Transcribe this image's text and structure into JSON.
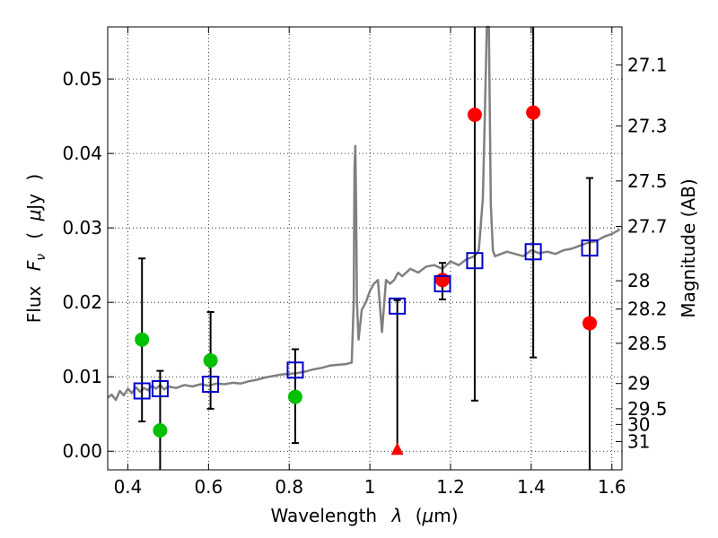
{
  "chart_data": {
    "type": "scatter",
    "title": "",
    "xlabel_parts": [
      "Wavelength",
      "λ",
      "(",
      "μ",
      "m)"
    ],
    "ylabel_parts": [
      "Flux",
      "F",
      "ν",
      "(",
      "μ",
      "Jy",
      ")"
    ],
    "ylabel_right": "Magnitude (AB)",
    "xlim": [
      0.35,
      1.625
    ],
    "ylim": [
      -0.0025,
      0.057
    ],
    "grid": true,
    "x_ticks": [
      {
        "value": 0.4,
        "label": "0.4"
      },
      {
        "value": 0.6,
        "label": "0.6"
      },
      {
        "value": 0.8,
        "label": "0.8"
      },
      {
        "value": 1.0,
        "label": "1"
      },
      {
        "value": 1.2,
        "label": "1.2"
      },
      {
        "value": 1.4,
        "label": "1.4"
      },
      {
        "value": 1.6,
        "label": "1.6"
      }
    ],
    "y_ticks": [
      {
        "value": 0.0,
        "label": "0.00"
      },
      {
        "value": 0.01,
        "label": "0.01"
      },
      {
        "value": 0.02,
        "label": "0.02"
      },
      {
        "value": 0.03,
        "label": "0.03"
      },
      {
        "value": 0.04,
        "label": "0.04"
      },
      {
        "value": 0.05,
        "label": "0.05"
      }
    ],
    "mag_ticks": [
      {
        "label": "27.1",
        "flux": 0.0519
      },
      {
        "label": "27.3",
        "flux": 0.0437
      },
      {
        "label": "27.5",
        "flux": 0.0363
      },
      {
        "label": "27.7",
        "flux": 0.0302
      },
      {
        "label": "28",
        "flux": 0.0229
      },
      {
        "label": "28.2",
        "flux": 0.0191
      },
      {
        "label": "28.5",
        "flux": 0.0145
      },
      {
        "label": "29",
        "flux": 0.0091
      },
      {
        "label": "29.5",
        "flux": 0.0057
      },
      {
        "label": "30",
        "flux": 0.0036
      },
      {
        "label": "31",
        "flux": 0.0013
      }
    ],
    "model_spectrum": {
      "color": "#808080",
      "x": [
        0.35,
        0.36,
        0.37,
        0.38,
        0.39,
        0.4,
        0.41,
        0.42,
        0.43,
        0.44,
        0.45,
        0.46,
        0.47,
        0.48,
        0.49,
        0.5,
        0.52,
        0.54,
        0.56,
        0.58,
        0.6,
        0.62,
        0.64,
        0.66,
        0.68,
        0.7,
        0.72,
        0.74,
        0.76,
        0.78,
        0.8,
        0.82,
        0.84,
        0.86,
        0.88,
        0.9,
        0.92,
        0.94,
        0.955,
        0.96,
        0.962,
        0.964,
        0.966,
        0.968,
        0.972,
        0.976,
        0.98,
        0.99,
        1.0,
        1.01,
        1.02,
        1.03,
        1.04,
        1.05,
        1.06,
        1.07,
        1.08,
        1.09,
        1.1,
        1.12,
        1.14,
        1.16,
        1.18,
        1.2,
        1.22,
        1.24,
        1.26,
        1.27,
        1.28,
        1.285,
        1.29,
        1.295,
        1.3,
        1.305,
        1.31,
        1.32,
        1.34,
        1.36,
        1.38,
        1.4,
        1.42,
        1.44,
        1.46,
        1.48,
        1.5,
        1.52,
        1.54,
        1.56,
        1.58,
        1.6,
        1.62
      ],
      "y": [
        0.0072,
        0.0076,
        0.0069,
        0.0081,
        0.0075,
        0.0084,
        0.0078,
        0.0086,
        0.008,
        0.0085,
        0.0082,
        0.0088,
        0.0084,
        0.0089,
        0.0083,
        0.0087,
        0.0085,
        0.0089,
        0.0087,
        0.009,
        0.0088,
        0.0091,
        0.009,
        0.0092,
        0.0091,
        0.0094,
        0.0096,
        0.0099,
        0.0101,
        0.0103,
        0.0104,
        0.0105,
        0.0107,
        0.011,
        0.0112,
        0.0115,
        0.0116,
        0.0117,
        0.0119,
        0.02,
        0.038,
        0.041,
        0.033,
        0.02,
        0.015,
        0.017,
        0.019,
        0.02,
        0.0215,
        0.0225,
        0.023,
        0.016,
        0.023,
        0.0225,
        0.023,
        0.024,
        0.0235,
        0.024,
        0.0245,
        0.024,
        0.0248,
        0.025,
        0.0245,
        0.0255,
        0.025,
        0.0258,
        0.0262,
        0.027,
        0.034,
        0.045,
        0.057,
        0.057,
        0.033,
        0.027,
        0.0262,
        0.0264,
        0.0268,
        0.0265,
        0.0262,
        0.027,
        0.0266,
        0.0268,
        0.0265,
        0.027,
        0.0272,
        0.0276,
        0.028,
        0.0282,
        0.0288,
        0.0292,
        0.0298
      ]
    },
    "series": [
      {
        "name": "green_points",
        "marker": "circle",
        "color": "#00c000",
        "points": [
          {
            "x": 0.435,
            "y": 0.015
          },
          {
            "x": 0.48,
            "y": 0.0028
          },
          {
            "x": 0.605,
            "y": 0.0122
          },
          {
            "x": 0.815,
            "y": 0.0073
          }
        ]
      },
      {
        "name": "red_points",
        "marker": "circle",
        "color": "#ff0000",
        "points": [
          {
            "x": 1.18,
            "y": 0.023
          },
          {
            "x": 1.26,
            "y": 0.0452
          },
          {
            "x": 1.405,
            "y": 0.0455
          },
          {
            "x": 1.545,
            "y": 0.0172
          }
        ]
      },
      {
        "name": "red_upper_limit",
        "marker": "triangle",
        "color": "#ff0000",
        "points": [
          {
            "x": 1.068,
            "y": 0.0
          }
        ]
      },
      {
        "name": "model_photometry",
        "marker": "square-open",
        "color": "#0000cc",
        "points": [
          {
            "x": 0.435,
            "y": 0.0081,
            "yerr_low": 0.004,
            "yerr_high": 0.0259
          },
          {
            "x": 0.48,
            "y": 0.0084,
            "yerr_low": -0.0025,
            "yerr_high": 0.0108
          },
          {
            "x": 0.605,
            "y": 0.009,
            "yerr_low": 0.0057,
            "yerr_high": 0.0187
          },
          {
            "x": 0.815,
            "y": 0.0109,
            "yerr_low": 0.0011,
            "yerr_high": 0.0137
          },
          {
            "x": 1.068,
            "y": 0.0195,
            "yerr_low": -0.0002,
            "yerr_high": 0.0203
          },
          {
            "x": 1.18,
            "y": 0.0225,
            "yerr_low": 0.0204,
            "yerr_high": 0.0253
          },
          {
            "x": 1.26,
            "y": 0.0256,
            "yerr_low": 0.0068,
            "yerr_high": 0.057
          },
          {
            "x": 1.405,
            "y": 0.0268,
            "yerr_low": 0.0126,
            "yerr_high": 0.057
          },
          {
            "x": 1.545,
            "y": 0.0273,
            "yerr_low": -0.0025,
            "yerr_high": 0.0367
          }
        ]
      }
    ]
  }
}
